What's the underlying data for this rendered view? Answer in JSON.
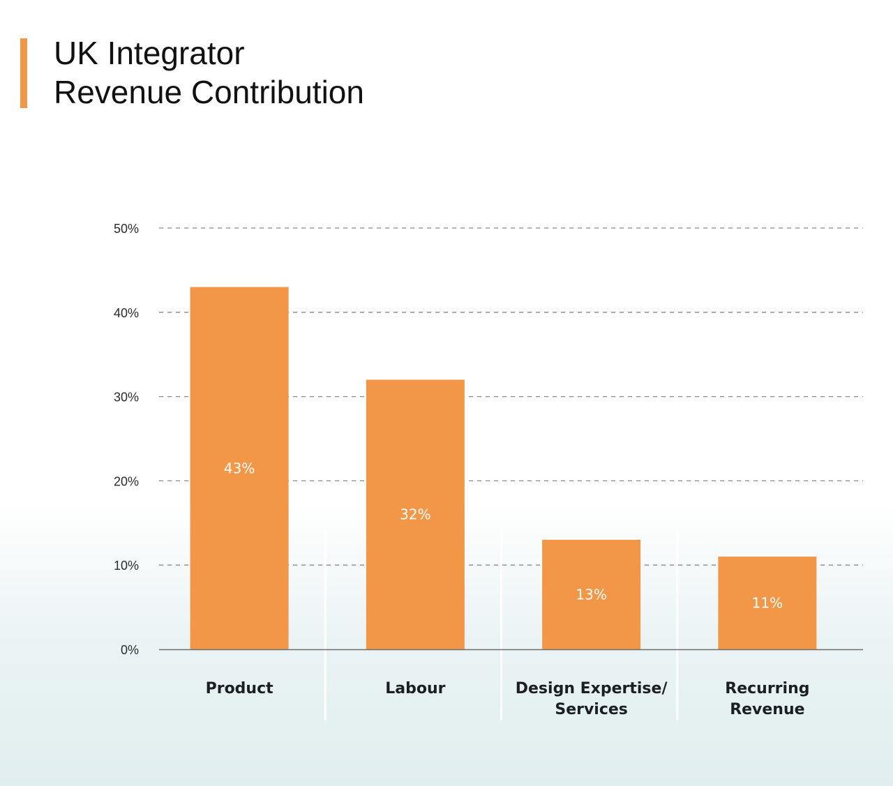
{
  "title": {
    "line1": "UK Integrator",
    "line2": "Revenue Contribution"
  },
  "colors": {
    "accent": "#f29748",
    "bar": "#f29748",
    "grid": "#8a8a8a",
    "axis": "#6e6e6e",
    "divider": "#ffffff"
  },
  "chart_data": {
    "type": "bar",
    "title": "UK Integrator Revenue Contribution",
    "xlabel": "",
    "ylabel": "",
    "categories": [
      [
        "Product"
      ],
      [
        "Labour"
      ],
      [
        "Design Expertise/",
        "Services"
      ],
      [
        "Recurring",
        "Revenue"
      ]
    ],
    "values": [
      43,
      32,
      13,
      11
    ],
    "data_labels": [
      "43%",
      "32%",
      "13%",
      "11%"
    ],
    "ylim": [
      0,
      50
    ],
    "yticks": [
      0,
      10,
      20,
      30,
      40,
      50
    ],
    "ytick_labels": [
      "0%",
      "10%",
      "20%",
      "30%",
      "40%",
      "50%"
    ],
    "grid": true,
    "grid_style": "dashed",
    "legend": "none"
  }
}
